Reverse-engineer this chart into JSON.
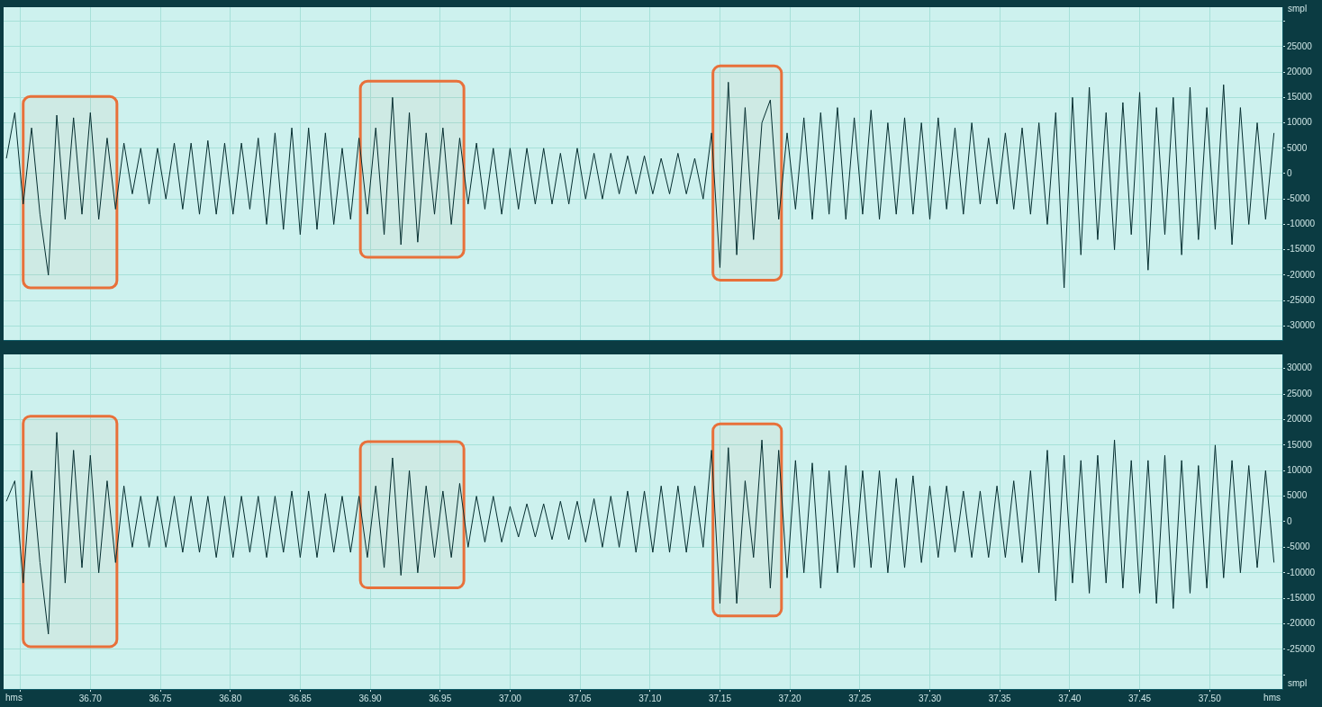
{
  "chart_data": [
    {
      "type": "line",
      "ylabel": "smpl",
      "grid": true,
      "legend": false,
      "marker": "none",
      "line_style": "solid",
      "tick_labels": "y",
      "xlim": [
        36.638,
        37.552
      ],
      "xticks": [
        36.65,
        36.7,
        36.75,
        36.8,
        36.85,
        36.9,
        36.95,
        37,
        37.05,
        37.1,
        37.15,
        37.2,
        37.25,
        37.3,
        37.35,
        37.4,
        37.45,
        37.5
      ],
      "ylim": [
        -32768,
        32767
      ],
      "yticks": [
        {
          "value": 30000,
          "label": null
        },
        25000,
        20000,
        15000,
        10000,
        5000,
        0,
        -5000,
        -10000,
        -15000,
        -20000,
        -25000,
        -30000
      ],
      "x": [
        36.64,
        36.646,
        36.652,
        36.658,
        36.664,
        36.67,
        36.676,
        36.682,
        36.688,
        36.694,
        36.7,
        36.706,
        36.712,
        36.718,
        36.724,
        36.73,
        36.736,
        36.742,
        36.748,
        36.754,
        36.76,
        36.766,
        36.772,
        36.778,
        36.784,
        36.79,
        36.796,
        36.802,
        36.808,
        36.814,
        36.82,
        36.826,
        36.832,
        36.838,
        36.844,
        36.85,
        36.856,
        36.862,
        36.868,
        36.874,
        36.88,
        36.886,
        36.892,
        36.898,
        36.904,
        36.91,
        36.916,
        36.922,
        36.928,
        36.934,
        36.94,
        36.946,
        36.952,
        36.958,
        36.964,
        36.97,
        36.976,
        36.982,
        36.988,
        36.994,
        37.0,
        37.006,
        37.012,
        37.018,
        37.024,
        37.03,
        37.036,
        37.042,
        37.048,
        37.054,
        37.06,
        37.066,
        37.072,
        37.078,
        37.084,
        37.09,
        37.096,
        37.102,
        37.108,
        37.114,
        37.12,
        37.126,
        37.132,
        37.138,
        37.144,
        37.15,
        37.156,
        37.162,
        37.168,
        37.174,
        37.18,
        37.186,
        37.192,
        37.198,
        37.204,
        37.21,
        37.216,
        37.222,
        37.228,
        37.234,
        37.24,
        37.246,
        37.252,
        37.258,
        37.264,
        37.27,
        37.276,
        37.282,
        37.288,
        37.294,
        37.3,
        37.306,
        37.312,
        37.318,
        37.324,
        37.33,
        37.336,
        37.342,
        37.348,
        37.354,
        37.36,
        37.366,
        37.372,
        37.378,
        37.384,
        37.39,
        37.396,
        37.402,
        37.408,
        37.414,
        37.42,
        37.426,
        37.432,
        37.438,
        37.444,
        37.45,
        37.456,
        37.462,
        37.468,
        37.474,
        37.48,
        37.486,
        37.492,
        37.498,
        37.504,
        37.51,
        37.516,
        37.522,
        37.528,
        37.534,
        37.54,
        37.546
      ],
      "series": [
        {
          "color": "#062e30",
          "values": [
            3000,
            12000,
            -6000,
            9000,
            -8000,
            -20000,
            11500,
            -9000,
            11000,
            -8000,
            12000,
            -9000,
            7000,
            -7000,
            6000,
            -4000,
            5000,
            -6000,
            5000,
            -5000,
            6000,
            -7000,
            6000,
            -8000,
            6500,
            -8000,
            6000,
            -8000,
            6000,
            -7000,
            7000,
            -10000,
            8000,
            -11000,
            9000,
            -12000,
            9000,
            -11000,
            8000,
            -10000,
            5000,
            -9000,
            7000,
            -8000,
            9000,
            -12000,
            15000,
            -14000,
            12000,
            -13500,
            8000,
            -8000,
            9000,
            -10000,
            7000,
            -6000,
            6000,
            -7000,
            5000,
            -8000,
            5000,
            -7000,
            5000,
            -6000,
            5000,
            -6000,
            4000,
            -6000,
            5000,
            -5000,
            4000,
            -5000,
            4000,
            -4000,
            3500,
            -4000,
            3500,
            -4000,
            3000,
            -4000,
            4000,
            -4000,
            3000,
            -5000,
            8000,
            -18500,
            18000,
            -16000,
            13000,
            -13000,
            10000,
            14500,
            -9000,
            8000,
            -7000,
            11000,
            -9000,
            12000,
            -8000,
            13000,
            -9000,
            11000,
            -8000,
            12500,
            -9000,
            10000,
            -8000,
            11000,
            -8000,
            10000,
            -9000,
            11000,
            -7000,
            9000,
            -8000,
            10000,
            -6000,
            7000,
            -6000,
            8000,
            -7000,
            9000,
            -8000,
            10000,
            -10000,
            12000,
            -22500,
            15000,
            -16000,
            17000,
            -13000,
            12000,
            -15000,
            14000,
            -12000,
            16000,
            -19000,
            13000,
            -12000,
            15000,
            -16000,
            17000,
            -13000,
            13000,
            -11000,
            17500,
            -14000,
            13000,
            -10000,
            10000,
            -9000,
            8000
          ]
        }
      ],
      "bands": [
        {
          "axis": "x",
          "from": 36.652,
          "to": 36.719,
          "color": "#e8703a"
        },
        {
          "axis": "x",
          "from": 36.893,
          "to": 36.967,
          "color": "#e8703a"
        },
        {
          "axis": "x",
          "from": 37.145,
          "to": 37.194,
          "color": "#e8703a"
        }
      ]
    },
    {
      "type": "line",
      "xlabel": "hms",
      "ylabel": "smpl",
      "grid": true,
      "legend": false,
      "marker": "none",
      "line_style": "solid",
      "xlim": [
        36.638,
        37.552
      ],
      "xticks": [
        {
          "value": 36.65,
          "label": null
        },
        {
          "value": 36.7,
          "label": "36.70"
        },
        36.75,
        {
          "value": 36.8,
          "label": "36.80"
        },
        36.85,
        {
          "value": 36.9,
          "label": "36.90"
        },
        36.95,
        {
          "value": 37,
          "label": "37.00"
        },
        37.05,
        {
          "value": 37.1,
          "label": "37.10"
        },
        37.15,
        {
          "value": 37.2,
          "label": "37.20"
        },
        37.25,
        {
          "value": 37.3,
          "label": "37.30"
        },
        37.35,
        {
          "value": 37.4,
          "label": "37.40"
        },
        37.45,
        {
          "value": 37.5,
          "label": "37.50"
        }
      ],
      "ylim": [
        -32768,
        32767
      ],
      "yticks": [
        30000,
        25000,
        20000,
        15000,
        10000,
        5000,
        0,
        -5000,
        -10000,
        -15000,
        -20000,
        -25000,
        {
          "value": -30000,
          "label": null
        }
      ],
      "x": [
        36.64,
        36.646,
        36.652,
        36.658,
        36.664,
        36.67,
        36.676,
        36.682,
        36.688,
        36.694,
        36.7,
        36.706,
        36.712,
        36.718,
        36.724,
        36.73,
        36.736,
        36.742,
        36.748,
        36.754,
        36.76,
        36.766,
        36.772,
        36.778,
        36.784,
        36.79,
        36.796,
        36.802,
        36.808,
        36.814,
        36.82,
        36.826,
        36.832,
        36.838,
        36.844,
        36.85,
        36.856,
        36.862,
        36.868,
        36.874,
        36.88,
        36.886,
        36.892,
        36.898,
        36.904,
        36.91,
        36.916,
        36.922,
        36.928,
        36.934,
        36.94,
        36.946,
        36.952,
        36.958,
        36.964,
        36.97,
        36.976,
        36.982,
        36.988,
        36.994,
        37.0,
        37.006,
        37.012,
        37.018,
        37.024,
        37.03,
        37.036,
        37.042,
        37.048,
        37.054,
        37.06,
        37.066,
        37.072,
        37.078,
        37.084,
        37.09,
        37.096,
        37.102,
        37.108,
        37.114,
        37.12,
        37.126,
        37.132,
        37.138,
        37.144,
        37.15,
        37.156,
        37.162,
        37.168,
        37.174,
        37.18,
        37.186,
        37.192,
        37.198,
        37.204,
        37.21,
        37.216,
        37.222,
        37.228,
        37.234,
        37.24,
        37.246,
        37.252,
        37.258,
        37.264,
        37.27,
        37.276,
        37.282,
        37.288,
        37.294,
        37.3,
        37.306,
        37.312,
        37.318,
        37.324,
        37.33,
        37.336,
        37.342,
        37.348,
        37.354,
        37.36,
        37.366,
        37.372,
        37.378,
        37.384,
        37.39,
        37.396,
        37.402,
        37.408,
        37.414,
        37.42,
        37.426,
        37.432,
        37.438,
        37.444,
        37.45,
        37.456,
        37.462,
        37.468,
        37.474,
        37.48,
        37.486,
        37.492,
        37.498,
        37.504,
        37.51,
        37.516,
        37.522,
        37.528,
        37.534,
        37.54,
        37.546
      ],
      "series": [
        {
          "color": "#062e30",
          "values": [
            4000,
            8000,
            -12000,
            10000,
            -8000,
            -22000,
            17500,
            -12000,
            14000,
            -9000,
            13000,
            -10000,
            8000,
            -8000,
            7000,
            -5000,
            5000,
            -5000,
            5000,
            -5000,
            5000,
            -6000,
            5000,
            -6000,
            5000,
            -7000,
            5000,
            -7000,
            5000,
            -6000,
            5000,
            -7000,
            5000,
            -6000,
            6000,
            -7000,
            6000,
            -7000,
            5500,
            -6000,
            5000,
            -6000,
            5000,
            -7000,
            7000,
            -9000,
            12500,
            -10500,
            10000,
            -10000,
            7000,
            -7000,
            6000,
            -7000,
            7500,
            -5000,
            5000,
            -4000,
            5000,
            -4000,
            3000,
            -3000,
            3500,
            -3000,
            3500,
            -3500,
            4000,
            -3500,
            4000,
            -4000,
            4500,
            -5000,
            5000,
            -5000,
            6000,
            -6000,
            6000,
            -6000,
            7000,
            -6000,
            7000,
            -6000,
            7000,
            -5000,
            14000,
            -16000,
            14500,
            -16000,
            8000,
            -7000,
            16000,
            -13000,
            14000,
            -11000,
            12000,
            -10000,
            11500,
            -13000,
            10000,
            -10000,
            11000,
            -9000,
            10000,
            -9000,
            10000,
            -10000,
            8500,
            -9000,
            9000,
            -8000,
            7000,
            -7000,
            7000,
            -6000,
            6000,
            -7000,
            6000,
            -7000,
            7000,
            -7000,
            8000,
            -8000,
            10000,
            -10000,
            14000,
            -15500,
            13000,
            -12000,
            12000,
            -14000,
            13000,
            -12000,
            16000,
            -13000,
            12000,
            -14000,
            12000,
            -16000,
            13000,
            -17000,
            12000,
            -14000,
            11000,
            -13000,
            15000,
            -11000,
            12000,
            -10000,
            11000,
            -9000,
            10000,
            -8000
          ]
        }
      ],
      "bands": [
        {
          "axis": "x",
          "from": 36.652,
          "to": 36.719,
          "color": "#e8703a"
        },
        {
          "axis": "x",
          "from": 36.893,
          "to": 36.967,
          "color": "#e8703a"
        },
        {
          "axis": "x",
          "from": 37.145,
          "to": 37.194,
          "color": "#e8703a"
        }
      ]
    }
  ]
}
